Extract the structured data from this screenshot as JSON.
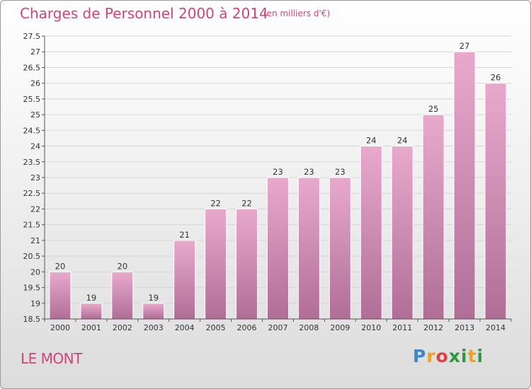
{
  "title": "Charges de Personnel 2000 à 2014",
  "subtitle": "(en milliers d'€)",
  "commune": "LE MONT",
  "logo": "Proxiti",
  "colors": {
    "bar_top": "#e9a9cc",
    "bar_bottom": "#b06e97",
    "title": "#d0447a",
    "axis": "#555555",
    "grid": "#d6d6d6"
  },
  "chart_data": {
    "type": "bar",
    "title": "Charges de Personnel 2000 à 2014",
    "subtitle": "(en milliers d'€)",
    "categories": [
      "2000",
      "2001",
      "2002",
      "2003",
      "2004",
      "2005",
      "2006",
      "2007",
      "2008",
      "2009",
      "2010",
      "2011",
      "2012",
      "2013",
      "2014"
    ],
    "values": [
      20,
      19,
      20,
      19,
      21,
      22,
      22,
      23,
      23,
      23,
      24,
      24,
      25,
      27,
      26
    ],
    "labels": [
      "20",
      "19",
      "20",
      "19",
      "21",
      "22",
      "22",
      "23",
      "23",
      "23",
      "24",
      "24",
      "25",
      "27",
      "26"
    ],
    "xlabel": "",
    "ylabel": "",
    "ylim": [
      18.5,
      27.5
    ],
    "yticks": [
      18.5,
      19,
      19.5,
      20,
      20.5,
      21,
      21.5,
      22,
      22.5,
      23,
      23.5,
      24,
      24.5,
      25,
      25.5,
      26,
      26.5,
      27,
      27.5
    ],
    "grid": true
  }
}
